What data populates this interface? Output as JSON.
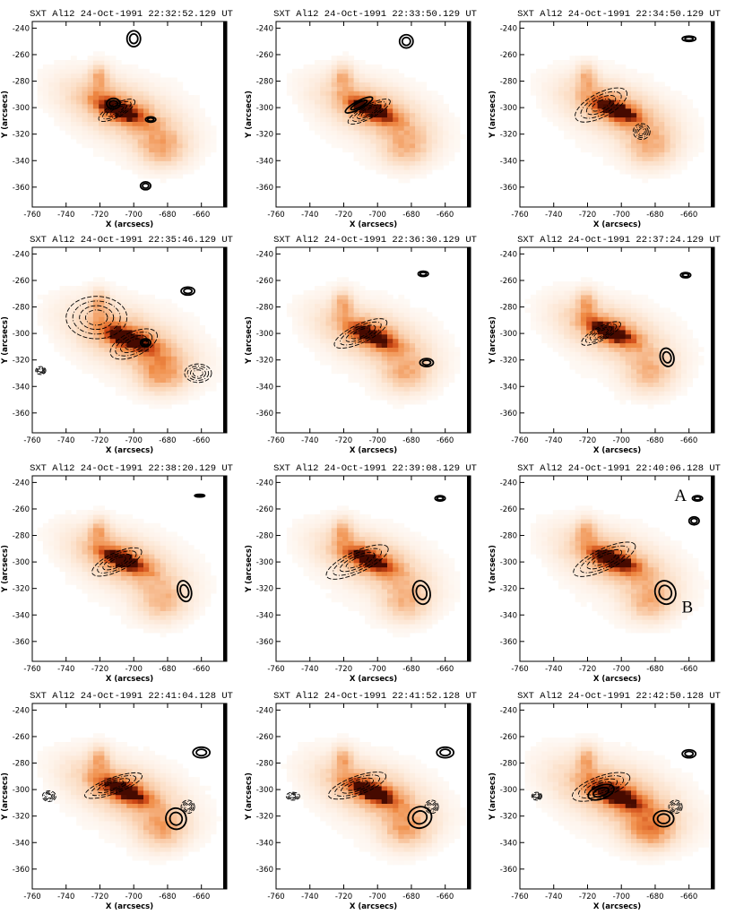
{
  "figure": {
    "description_free": true,
    "xlabel": "X (arcsecs)",
    "ylabel": "Y (arcsecs)",
    "x_ticks": [
      -760,
      -740,
      -720,
      -700,
      -680,
      -660
    ],
    "y_ticks": [
      -240,
      -260,
      -280,
      -300,
      -320,
      -340,
      -360
    ],
    "xlim": [
      -760,
      -645
    ],
    "ylim": [
      -375,
      -235
    ],
    "colors": {
      "map_peak": "#5a0f00",
      "map_mid": "#e06a1e",
      "map_low": "#fbd9bd",
      "contour": "#000000"
    }
  },
  "chart_data": [
    {
      "type": "heatmap",
      "title": "SXT Al12   24-Oct-1991  22:32:52.129  UT",
      "core": [
        -710,
        -303
      ],
      "spread": 1.0,
      "dashed": [
        {
          "cx": -710,
          "cy": -302,
          "rx": 12,
          "ry": 5,
          "rot": -28
        }
      ],
      "solid": [
        {
          "cx": -712,
          "cy": -297,
          "rx": 4,
          "ry": 4
        },
        {
          "cx": -690,
          "cy": -309,
          "rx": 3,
          "ry": 2
        },
        {
          "cx": -693,
          "cy": -359,
          "rx": 3,
          "ry": 3
        },
        {
          "cx": -700,
          "cy": -248,
          "rx": 4,
          "ry": 6
        }
      ],
      "labels": []
    },
    {
      "type": "heatmap",
      "title": "SXT Al12   24-Oct-1991  22:33:50.129  UT",
      "core": [
        -705,
        -303
      ],
      "spread": 0.9,
      "dashed": [
        {
          "cx": -705,
          "cy": -303,
          "rx": 14,
          "ry": 5,
          "rot": -28
        }
      ],
      "solid": [
        {
          "cx": -711,
          "cy": -298,
          "rx": 9,
          "ry": 3,
          "rot": -28
        },
        {
          "cx": -683,
          "cy": -250,
          "rx": 4,
          "ry": 5
        }
      ],
      "labels": []
    },
    {
      "type": "heatmap",
      "title": "SXT Al12   24-Oct-1991  22:34:50.129  UT",
      "core": [
        -705,
        -303
      ],
      "spread": 0.9,
      "dashed": [
        {
          "cx": -712,
          "cy": -298,
          "rx": 17,
          "ry": 9,
          "rot": -28
        },
        {
          "cx": -688,
          "cy": -318,
          "rx": 5,
          "ry": 6
        }
      ],
      "solid": [
        {
          "cx": -660,
          "cy": -248,
          "rx": 4,
          "ry": 2
        }
      ],
      "labels": []
    },
    {
      "type": "heatmap",
      "title": "SXT Al12   24-Oct-1991  22:35:46.129  UT",
      "core": [
        -705,
        -305
      ],
      "spread": 1.1,
      "dashed": [
        {
          "cx": -722,
          "cy": -288,
          "rx": 18,
          "ry": 16,
          "rot": 0
        },
        {
          "cx": -700,
          "cy": -308,
          "rx": 15,
          "ry": 9,
          "rot": -25
        },
        {
          "cx": -662,
          "cy": -330,
          "rx": 8,
          "ry": 7
        },
        {
          "cx": -755,
          "cy": -328,
          "rx": 3,
          "ry": 3
        }
      ],
      "solid": [
        {
          "cx": -668,
          "cy": -268,
          "rx": 4,
          "ry": 3
        },
        {
          "cx": -693,
          "cy": -307,
          "rx": 3,
          "ry": 3
        }
      ],
      "labels": []
    },
    {
      "type": "heatmap",
      "title": "SXT Al12   24-Oct-1991  22:36:30.129  UT",
      "core": [
        -705,
        -303
      ],
      "spread": 0.9,
      "dashed": [
        {
          "cx": -710,
          "cy": -300,
          "rx": 17,
          "ry": 7,
          "rot": -25
        }
      ],
      "solid": [
        {
          "cx": -671,
          "cy": -322,
          "rx": 4,
          "ry": 3
        },
        {
          "cx": -673,
          "cy": -255,
          "rx": 3,
          "ry": 2
        }
      ],
      "labels": []
    },
    {
      "type": "heatmap",
      "title": "SXT Al12   24-Oct-1991  22:37:24.129  UT",
      "core": [
        -708,
        -300
      ],
      "spread": 0.9,
      "dashed": [
        {
          "cx": -712,
          "cy": -300,
          "rx": 13,
          "ry": 5,
          "rot": -28
        }
      ],
      "solid": [
        {
          "cx": -673,
          "cy": -318,
          "rx": 4,
          "ry": 7,
          "rot": -15
        },
        {
          "cx": -662,
          "cy": -256,
          "rx": 3,
          "ry": 2
        }
      ],
      "labels": []
    },
    {
      "type": "heatmap",
      "title": "SXT Al12   24-Oct-1991  22:38:20.129  UT",
      "core": [
        -708,
        -300
      ],
      "spread": 0.9,
      "dashed": [
        {
          "cx": -710,
          "cy": -300,
          "rx": 16,
          "ry": 7,
          "rot": -25
        }
      ],
      "solid": [
        {
          "cx": -670,
          "cy": -322,
          "rx": 4,
          "ry": 8,
          "rot": -15
        },
        {
          "cx": -661,
          "cy": -250,
          "rx": 3,
          "ry": 1
        }
      ],
      "labels": []
    },
    {
      "type": "heatmap",
      "title": "SXT Al12   24-Oct-1991  22:39:08.129  UT",
      "core": [
        -706,
        -300
      ],
      "spread": 0.9,
      "dashed": [
        {
          "cx": -712,
          "cy": -300,
          "rx": 20,
          "ry": 8,
          "rot": -25
        }
      ],
      "solid": [
        {
          "cx": -674,
          "cy": -323,
          "rx": 5,
          "ry": 9,
          "rot": -15
        },
        {
          "cx": -663,
          "cy": -252,
          "rx": 3,
          "ry": 2
        }
      ],
      "labels": []
    },
    {
      "type": "heatmap",
      "title": "SXT Al12   24-Oct-1991  22:40:06.128  UT",
      "core": [
        -706,
        -300
      ],
      "spread": 0.95,
      "dashed": [
        {
          "cx": -710,
          "cy": -298,
          "rx": 20,
          "ry": 8,
          "rot": -25
        }
      ],
      "solid": [
        {
          "cx": -674,
          "cy": -323,
          "rx": 6,
          "ry": 9,
          "rot": -20
        },
        {
          "cx": -657,
          "cy": -269,
          "rx": 3,
          "ry": 3
        },
        {
          "cx": -655,
          "cy": -252,
          "rx": 3,
          "ry": 2
        }
      ],
      "labels": [
        {
          "text": "A"
        },
        {
          "text": "B"
        }
      ]
    },
    {
      "type": "heatmap",
      "title": "SXT Al12   24-Oct-1991  22:41:04.128  UT",
      "core": [
        -708,
        -302
      ],
      "spread": 1.0,
      "dashed": [
        {
          "cx": -712,
          "cy": -297,
          "rx": 18,
          "ry": 6,
          "rot": -20
        },
        {
          "cx": -668,
          "cy": -313,
          "rx": 4,
          "ry": 5
        },
        {
          "cx": -750,
          "cy": -305,
          "rx": 4,
          "ry": 4
        }
      ],
      "solid": [
        {
          "cx": -675,
          "cy": -322,
          "rx": 6,
          "ry": 8,
          "rot": -20
        },
        {
          "cx": -660,
          "cy": -272,
          "rx": 5,
          "ry": 4
        }
      ],
      "labels": []
    },
    {
      "type": "heatmap",
      "title": "SXT Al12   24-Oct-1991  22:41:52.128  UT",
      "core": [
        -705,
        -303
      ],
      "spread": 1.0,
      "dashed": [
        {
          "cx": -712,
          "cy": -297,
          "rx": 18,
          "ry": 7,
          "rot": -20
        },
        {
          "cx": -668,
          "cy": -313,
          "rx": 4,
          "ry": 5
        },
        {
          "cx": -750,
          "cy": -305,
          "rx": 4,
          "ry": 3
        }
      ],
      "solid": [
        {
          "cx": -675,
          "cy": -321,
          "rx": 7,
          "ry": 8,
          "rot": -20
        },
        {
          "cx": -660,
          "cy": -272,
          "rx": 5,
          "ry": 4
        }
      ],
      "labels": []
    },
    {
      "type": "heatmap",
      "title": "SXT Al12   24-Oct-1991  22:42:50.128  UT",
      "core": [
        -705,
        -305
      ],
      "spread": 1.25,
      "dashed": [
        {
          "cx": -712,
          "cy": -298,
          "rx": 18,
          "ry": 8,
          "rot": -20
        },
        {
          "cx": -668,
          "cy": -313,
          "rx": 4,
          "ry": 5
        },
        {
          "cx": -750,
          "cy": -305,
          "rx": 3,
          "ry": 3
        }
      ],
      "solid": [
        {
          "cx": -712,
          "cy": -302,
          "rx": 8,
          "ry": 5,
          "rot": -20
        },
        {
          "cx": -675,
          "cy": -322,
          "rx": 6,
          "ry": 6
        },
        {
          "cx": -660,
          "cy": -273,
          "rx": 4,
          "ry": 3
        }
      ],
      "labels": []
    }
  ]
}
